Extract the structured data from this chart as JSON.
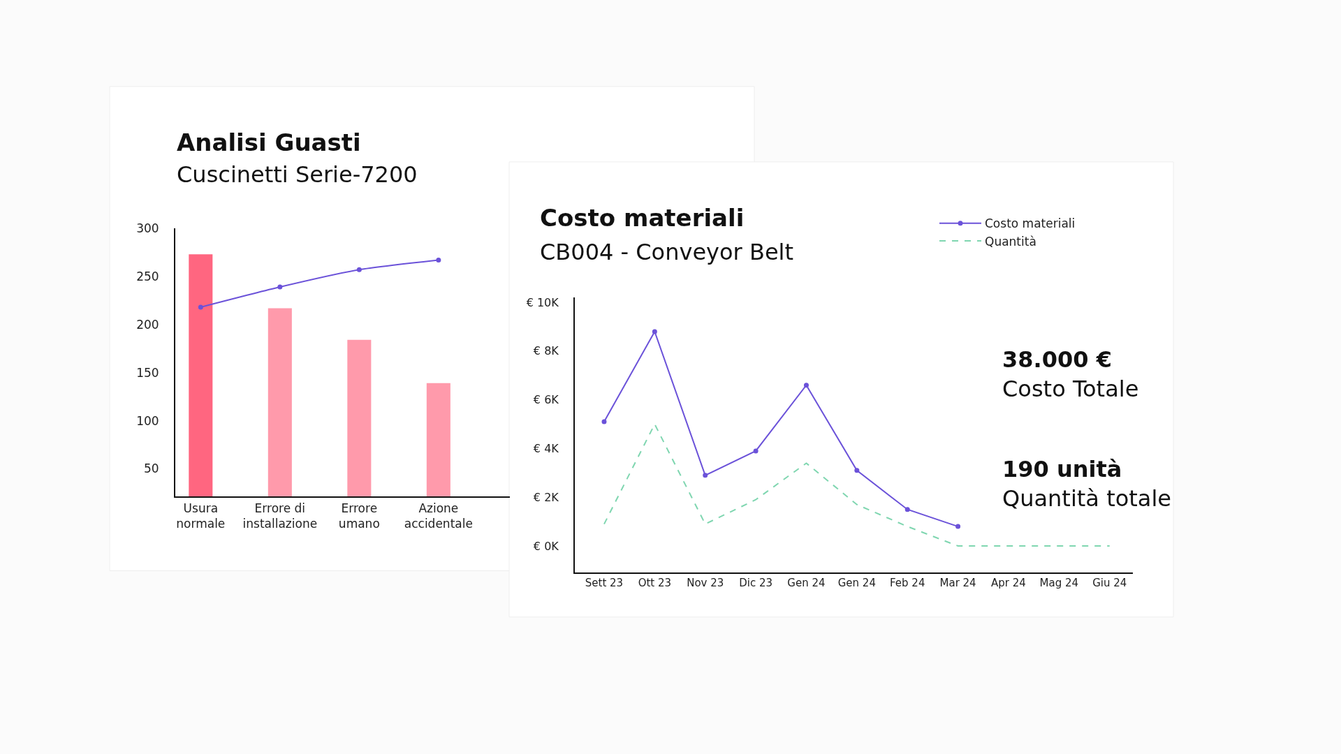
{
  "chart_data": [
    {
      "type": "bar",
      "title": "Analisi Guasti",
      "subtitle": "Cuscinetti Serie-7200",
      "categories": [
        "Usura normale",
        "Errore di installazione",
        "Errore umano",
        "Azione accidentale"
      ],
      "series": [
        {
          "type": "bar",
          "colors": [
            "#ff6680",
            "#ff9aab",
            "#ff9aab",
            "#ff9aab"
          ],
          "values": [
            273,
            217,
            184,
            139
          ]
        },
        {
          "type": "line",
          "color": "#6b52d9",
          "marker": "circle",
          "line_style": "solid",
          "values": [
            218,
            239,
            257,
            267
          ]
        }
      ],
      "ylim": [
        21,
        300
      ],
      "yticks": [
        50,
        100,
        150,
        200,
        250,
        300
      ],
      "grid": false
    },
    {
      "type": "line",
      "title": "Costo materiali",
      "subtitle": "CB004 - Conveyor Belt",
      "categories": [
        "Sett 23",
        "Ott 23",
        "Nov 23",
        "Dic 23",
        "Gen 24",
        "Gen 24",
        "Feb 24",
        "Mar 24",
        "Apr 24",
        "Mag 24",
        "Giu 24"
      ],
      "series": [
        {
          "name": "Costo materiali",
          "color": "#6b52d9",
          "marker": "circle",
          "line_style": "solid",
          "values": [
            5100,
            8800,
            2900,
            3900,
            6600,
            3100,
            1500,
            800,
            null,
            null,
            null
          ]
        },
        {
          "name": "Quantità",
          "color": "#7fd6b0",
          "marker": "none",
          "line_style": "dashed",
          "values": [
            900,
            5000,
            900,
            1900,
            3400,
            1700,
            800,
            0,
            0,
            null,
            0
          ]
        }
      ],
      "ylim": [
        -1100,
        10200
      ],
      "yticks": [
        {
          "value": 0,
          "label": "€ 0K"
        },
        {
          "value": 2000,
          "label": "€ 2K"
        },
        {
          "value": 4000,
          "label": "€ 4K"
        },
        {
          "value": 6000,
          "label": "€ 6K"
        },
        {
          "value": 8000,
          "label": "€ 8K"
        },
        {
          "value": 10000,
          "label": "€ 10K"
        }
      ],
      "grid": false,
      "legend": "top right"
    },
    {
      "type": "other",
      "title": "38.000 €",
      "subtitle": "Costo Totale"
    },
    {
      "type": "other",
      "title": "190 unità",
      "subtitle": "Quantità totale"
    }
  ]
}
